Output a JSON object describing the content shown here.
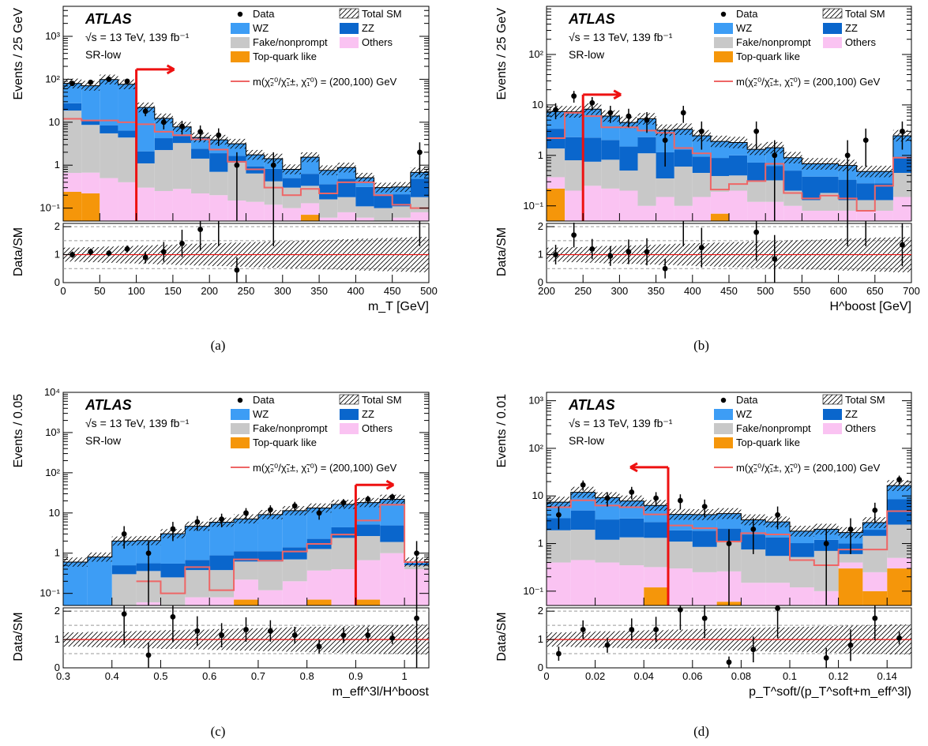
{
  "figure": {
    "legend": {
      "data": "Data",
      "total_sm": "Total SM",
      "wz": "WZ",
      "zz": "ZZ",
      "fake": "Fake/nonprompt",
      "others": "Others",
      "top": "Top-quark like",
      "signal": "m(χ̃₂⁰/χ̃₁±, χ̃₁⁰) = (200,100) GeV"
    },
    "colors": {
      "wz": "#3d9df5",
      "zz": "#0a66cc",
      "fake": "#c8c8c8",
      "others": "#fac3f2",
      "top": "#f5960a",
      "signal": "#ee6666",
      "arrow": "#ee1111"
    }
  },
  "chart_data": [
    {
      "panel": "(a)",
      "type": "bar",
      "atlas": "ATLAS",
      "energy": "√s = 13 TeV, 139 fb⁻¹",
      "region": "SR-low",
      "ylabel": "Events / 25 GeV",
      "ratio_label": "Data/SM",
      "xlabel": "m_T [GeV]",
      "xlim": [
        0,
        500
      ],
      "ylim": [
        0.05,
        5000
      ],
      "x_ticks": [
        "0",
        "50",
        "100",
        "150",
        "200",
        "250",
        "300",
        "350",
        "400",
        "450",
        "500"
      ],
      "y_ticks": [
        "10⁻¹",
        "1",
        "10",
        "10²",
        "10³"
      ],
      "ratio_ticks": [
        "0",
        "1",
        "2"
      ],
      "bin_edges": [
        0,
        25,
        50,
        75,
        100,
        125,
        150,
        175,
        200,
        225,
        250,
        275,
        300,
        325,
        350,
        375,
        400,
        425,
        450,
        475,
        500
      ],
      "stack": {
        "top": [
          0.24,
          0.22,
          0,
          0,
          0,
          0,
          0,
          0,
          0,
          0,
          0,
          0,
          0,
          0.07,
          0,
          0,
          0,
          0,
          0,
          0
        ],
        "others": [
          0.42,
          0.45,
          0.5,
          0.4,
          0.3,
          0.25,
          0.28,
          0.22,
          0.2,
          0.15,
          0.14,
          0.12,
          0.1,
          0.06,
          0.06,
          0.08,
          0.06,
          0.05,
          0.06,
          0.08
        ],
        "fake": [
          18,
          8,
          5,
          4,
          0.8,
          2,
          3,
          1.2,
          0.5,
          1,
          0.5,
          0.3,
          0.2,
          0.2,
          0.1,
          0.1,
          0.05,
          0.05,
          0.05,
          0.1
        ],
        "zz": [
          9,
          2,
          3,
          2,
          1,
          2,
          1.5,
          1,
          1.2,
          0.5,
          0.3,
          0.4,
          0.2,
          0.3,
          0.2,
          0.3,
          0.2,
          0.1,
          0.1,
          0.3
        ],
        "wz": [
          52,
          60,
          90,
          70,
          20,
          8,
          3,
          2,
          2,
          1.5,
          0.8,
          0.6,
          0.3,
          0.9,
          0.4,
          0.4,
          0.2,
          0.1,
          0.1,
          0.2
        ]
      },
      "signal": [
        12,
        11,
        11,
        10,
        9,
        6,
        5,
        4,
        2.3,
        1.2,
        0.8,
        0.3,
        0.2,
        0.28,
        0.22,
        0.4,
        0.4,
        0.2,
        0.12,
        0.1
      ],
      "data_x": [
        12.5,
        37.5,
        62.5,
        87.5,
        112.5,
        137.5,
        162.5,
        187.5,
        212.5,
        237.5,
        287.5,
        487.5
      ],
      "data_y": [
        80,
        85,
        100,
        90,
        18,
        10,
        8,
        6,
        5,
        1,
        1,
        2
      ],
      "data_err": [
        9,
        9,
        10,
        9.5,
        4.2,
        3.2,
        2.8,
        2.4,
        2.2,
        1,
        1,
        1.4
      ],
      "ratio_y": [
        1.0,
        1.1,
        1.05,
        1.2,
        0.9,
        1.1,
        1.4,
        1.9,
        null,
        0.45,
        null,
        null
      ],
      "arrow": {
        "x": 100,
        "y": 170,
        "dir": "right"
      }
    },
    {
      "panel": "(b)",
      "type": "bar",
      "atlas": "ATLAS",
      "energy": "√s = 13 TeV, 139 fb⁻¹",
      "region": "SR-low",
      "ylabel": "Events / 25 GeV",
      "ratio_label": "Data/SM",
      "xlabel": "H^boost [GeV]",
      "xlim": [
        200,
        700
      ],
      "ylim": [
        0.05,
        900
      ],
      "x_ticks": [
        "200",
        "250",
        "300",
        "350",
        "400",
        "450",
        "500",
        "550",
        "600",
        "650",
        "700"
      ],
      "y_ticks": [
        "10⁻¹",
        "1",
        "10",
        "10²"
      ],
      "ratio_ticks": [
        "0",
        "1",
        "2"
      ],
      "bin_edges": [
        200,
        225,
        250,
        275,
        300,
        325,
        350,
        375,
        400,
        425,
        450,
        475,
        500,
        525,
        550,
        575,
        600,
        625,
        650,
        675,
        700
      ],
      "stack": {
        "top": [
          0.22,
          0,
          0,
          0,
          0,
          0,
          0,
          0,
          0,
          0.07,
          0,
          0,
          0,
          0,
          0,
          0,
          0,
          0,
          0,
          0
        ],
        "others": [
          0.15,
          0.2,
          0.25,
          0.22,
          0.2,
          0.1,
          0.15,
          0.1,
          0.15,
          0.12,
          0.2,
          0.12,
          0.12,
          0.1,
          0.08,
          0.08,
          0.08,
          0.08,
          0.08,
          0.15
        ],
        "fake": [
          1,
          0.6,
          0.5,
          0.6,
          0.3,
          1,
          0.2,
          0.5,
          0.3,
          0.2,
          0.2,
          0.2,
          0.2,
          0.1,
          0.05,
          0.1,
          0.05,
          0.05,
          0.05,
          0.3
        ],
        "zz": [
          2,
          1.5,
          1.5,
          1.2,
          1,
          1.2,
          0.8,
          0.7,
          0.5,
          0.5,
          0.6,
          0.4,
          0.3,
          0.3,
          0.25,
          0.2,
          0.2,
          0.15,
          0.15,
          0.5
        ],
        "wz": [
          4,
          5,
          6,
          4,
          3,
          3,
          2,
          2,
          1.5,
          1,
          0.8,
          0.6,
          0.8,
          0.4,
          0.3,
          0.3,
          0.3,
          0.2,
          0.2,
          1.5
        ]
      },
      "signal": [
        2.2,
        7,
        6,
        3.6,
        3.6,
        3.1,
        2.8,
        1.4,
        1.1,
        0.21,
        0.27,
        0.31,
        0.68,
        0.18,
        0.14,
        0.16,
        0.14,
        0.08,
        0.25,
        0.9
      ],
      "data_x": [
        212.5,
        237.5,
        262.5,
        287.5,
        312.5,
        337.5,
        362.5,
        387.5,
        412.5,
        487.5,
        512.5,
        612.5,
        637.5,
        687.5
      ],
      "data_y": [
        8,
        15,
        11,
        7,
        6,
        5,
        2,
        7,
        3,
        3,
        1,
        1,
        2,
        3
      ],
      "data_err": [
        2.8,
        3.9,
        3.3,
        2.6,
        2.4,
        2.2,
        1.4,
        2.6,
        1.7,
        1.7,
        1,
        1,
        1.4,
        1.7
      ],
      "ratio_y": [
        1.0,
        1.7,
        1.2,
        0.95,
        1.1,
        1.1,
        0.5,
        null,
        1.25,
        1.8,
        0.85,
        null,
        null,
        1.35
      ],
      "arrow": {
        "x": 250,
        "y": 16,
        "dir": "right"
      }
    },
    {
      "panel": "(c)",
      "type": "bar",
      "atlas": "ATLAS",
      "energy": "√s = 13 TeV, 139 fb⁻¹",
      "region": "SR-low",
      "ylabel": "Events / 0.05",
      "ratio_label": "Data/SM",
      "xlabel": "m_eff^3l/H^boost",
      "xlim": [
        0.3,
        1.05
      ],
      "ylim": [
        0.05,
        10000
      ],
      "x_ticks": [
        "0.3",
        "0.4",
        "0.5",
        "0.6",
        "0.7",
        "0.8",
        "0.9",
        "1"
      ],
      "y_ticks": [
        "10⁻¹",
        "1",
        "10",
        "10²",
        "10³",
        "10⁴"
      ],
      "ratio_ticks": [
        "0",
        "1",
        "2"
      ],
      "bin_edges": [
        0.3,
        0.35,
        0.4,
        0.45,
        0.5,
        0.55,
        0.6,
        0.65,
        0.7,
        0.75,
        0.8,
        0.85,
        0.9,
        0.95,
        1.0,
        1.05
      ],
      "stack": {
        "top": [
          0,
          0,
          0,
          0,
          0,
          0,
          0,
          0.07,
          0,
          0,
          0.07,
          0,
          0.07,
          0,
          0
        ],
        "others": [
          0,
          0,
          0,
          0.06,
          0.05,
          0.08,
          0.08,
          0.15,
          0.12,
          0.2,
          0.3,
          0.4,
          0.6,
          1,
          0.4
        ],
        "fake": [
          0,
          0,
          0.3,
          0.3,
          0.2,
          0.3,
          0.3,
          0.4,
          0.5,
          0.5,
          0.9,
          2,
          2,
          0.9,
          0.1
        ],
        "zz": [
          0,
          0,
          0.2,
          0.2,
          0.3,
          0.3,
          0.5,
          0.5,
          0.5,
          0.7,
          1,
          2,
          2.5,
          3,
          0.05
        ],
        "wz": [
          0.6,
          0.8,
          1.5,
          1.5,
          2.5,
          4,
          5,
          6,
          8,
          10,
          11,
          12,
          13,
          17,
          0.05
        ]
      },
      "signal": [
        0,
        0,
        0,
        0.2,
        0.1,
        0.45,
        0.12,
        0.7,
        0.65,
        1.1,
        1.7,
        2.9,
        6.5,
        16,
        0.6
      ],
      "data_x": [
        0.425,
        0.475,
        0.525,
        0.575,
        0.625,
        0.675,
        0.725,
        0.775,
        0.825,
        0.875,
        0.925,
        0.975,
        1.025
      ],
      "data_y": [
        3,
        1,
        4,
        6,
        7,
        10,
        12,
        15,
        10,
        18,
        22,
        25,
        1
      ],
      "data_err": [
        1.7,
        1,
        2,
        2.4,
        2.6,
        3.2,
        3.5,
        3.9,
        3.2,
        4.2,
        4.7,
        5,
        1
      ],
      "ratio_y": [
        1.9,
        0.45,
        1.8,
        1.3,
        1.15,
        1.35,
        1.3,
        1.15,
        0.75,
        1.15,
        1.15,
        1.05,
        1.75
      ],
      "arrow": {
        "x": 0.9,
        "y": 50,
        "dir": "right"
      }
    },
    {
      "panel": "(d)",
      "type": "bar",
      "atlas": "ATLAS",
      "energy": "√s = 13 TeV, 139 fb⁻¹",
      "region": "SR-low",
      "ylabel": "Events / 0.01",
      "ratio_label": "Data/SM",
      "xlabel": "p_T^soft/(p_T^soft+m_eff^3l)",
      "xlim": [
        0,
        0.15
      ],
      "ylim": [
        0.05,
        1500
      ],
      "x_ticks": [
        "0",
        "0.02",
        "0.04",
        "0.06",
        "0.08",
        "0.1",
        "0.12",
        "0.14"
      ],
      "y_ticks": [
        "10⁻¹",
        "1",
        "10",
        "10²",
        "10³"
      ],
      "ratio_ticks": [
        "0",
        "1",
        "2"
      ],
      "bin_edges": [
        0,
        0.01,
        0.02,
        0.03,
        0.04,
        0.05,
        0.06,
        0.07,
        0.08,
        0.09,
        0.1,
        0.11,
        0.12,
        0.13,
        0.14,
        0.15
      ],
      "stack": {
        "top": [
          0,
          0,
          0,
          0,
          0.12,
          0,
          0,
          0.06,
          0,
          0,
          0,
          0,
          0.3,
          0.1,
          0.3
        ],
        "others": [
          0.4,
          0.45,
          0.4,
          0.35,
          0.2,
          0.3,
          0.25,
          0.2,
          0.15,
          0.15,
          0.12,
          0.1,
          0.1,
          0.15,
          0.2
        ],
        "fake": [
          1.5,
          1.5,
          0.8,
          1,
          1,
          0.8,
          0.6,
          0.8,
          0.6,
          0.4,
          0.4,
          0.6,
          0.2,
          1.2,
          2
        ],
        "zz": [
          1.5,
          3,
          2,
          2,
          1.5,
          0.8,
          1,
          1,
          0.8,
          0.8,
          0.5,
          0.5,
          0.4,
          0.5,
          6
        ],
        "wz": [
          4,
          7,
          6,
          4.5,
          3.5,
          2.2,
          2.2,
          2.2,
          1.6,
          1.5,
          0.8,
          0.8,
          0.7,
          0.8,
          8
        ]
      },
      "signal": [
        5.8,
        8.1,
        6.3,
        5.8,
        4.1,
        2.4,
        2.1,
        1.1,
        1.65,
        1.55,
        0.45,
        0.35,
        0.75,
        0.75,
        4.8
      ],
      "data_x": [
        0.005,
        0.015,
        0.025,
        0.035,
        0.045,
        0.055,
        0.065,
        0.075,
        0.085,
        0.095,
        0.115,
        0.125,
        0.135,
        0.145
      ],
      "data_y": [
        4,
        17,
        9,
        12,
        9,
        8,
        6,
        1,
        2,
        4,
        1,
        2,
        5,
        22
      ],
      "data_err": [
        2,
        4.1,
        3,
        3.5,
        3,
        2.8,
        2.4,
        1,
        1.4,
        2,
        1,
        1.4,
        2.2,
        4.7
      ],
      "ratio_y": [
        0.5,
        1.35,
        0.8,
        1.35,
        1.35,
        2.05,
        1.75,
        0.2,
        0.65,
        2.1,
        0.35,
        0.8,
        1.75,
        1.05
      ],
      "arrow": {
        "x": 0.05,
        "y": 40,
        "dir": "left"
      }
    }
  ]
}
